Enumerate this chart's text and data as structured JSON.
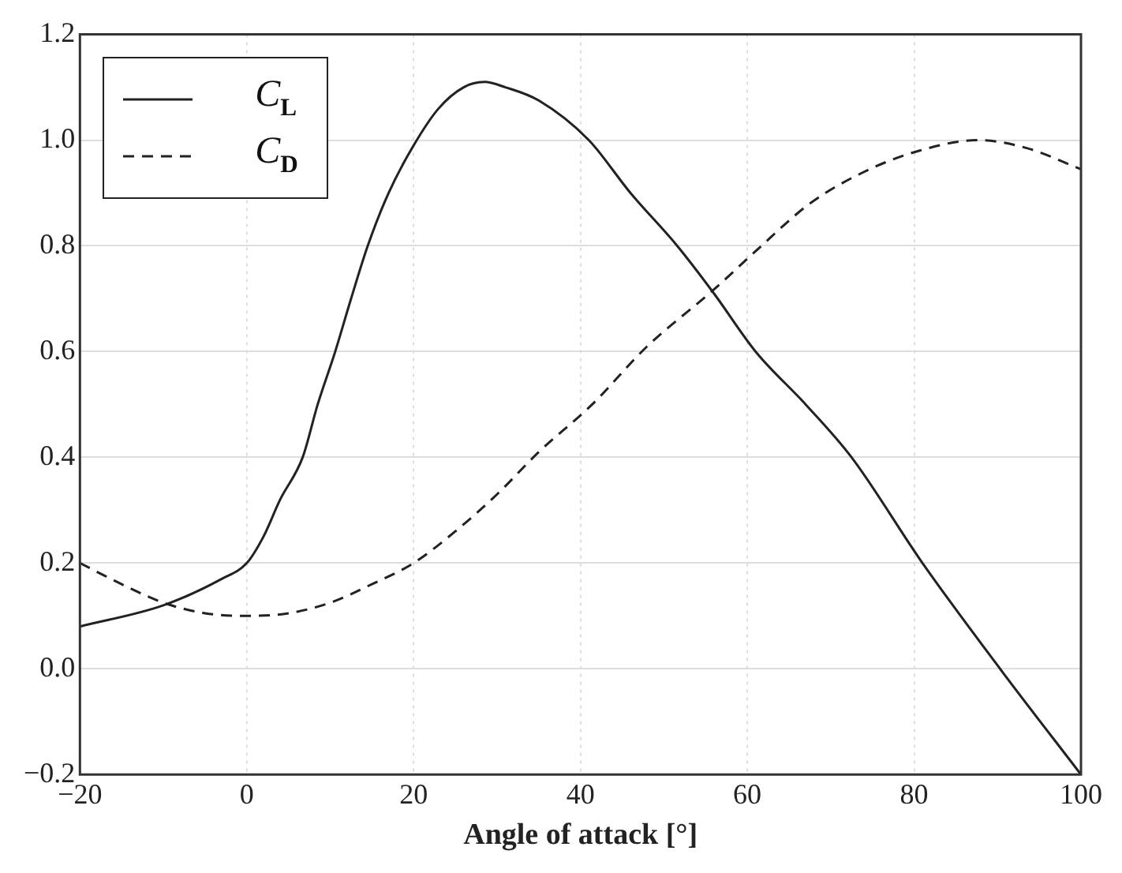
{
  "chart_data": {
    "type": "line",
    "xlabel": "Angle of attack [°]",
    "xlim": [
      -20,
      100
    ],
    "xticks": [
      -20,
      0,
      20,
      40,
      60,
      80,
      100
    ],
    "ylim": [
      -0.2,
      1.2
    ],
    "yticks": [
      {
        "value": -0.2,
        "label": "−0.2"
      },
      {
        "value": 0,
        "label": "0.0"
      },
      {
        "value": 0.2,
        "label": "0.2"
      },
      {
        "value": 0.4,
        "label": "0.4"
      },
      {
        "value": 0.6,
        "label": "0.6"
      },
      {
        "value": 0.8,
        "label": "0.8"
      },
      {
        "value": 1,
        "label": "1.0"
      },
      {
        "value": 1.2,
        "label": "1.2"
      }
    ],
    "grid": true,
    "legend": "top left",
    "marker": "none",
    "series": [
      {
        "name": "C$_{L}$",
        "color": "#222222",
        "line_style": "solid",
        "x": [
          -20,
          -10,
          -3,
          0,
          2,
          4,
          6.7,
          8.5,
          10.6,
          12.5,
          14.5,
          17,
          20,
          23,
          26,
          28.5,
          31,
          35,
          41,
          46,
          51.6,
          56,
          61,
          67,
          72.5,
          81,
          90.3,
          100
        ],
        "values": [
          0.08,
          0.12,
          0.17,
          0.2,
          0.25,
          0.32,
          0.4,
          0.5,
          0.6,
          0.7,
          0.8,
          0.9,
          0.99,
          1.06,
          1.1,
          1.11,
          1.1,
          1.075,
          1.0,
          0.9,
          0.8,
          0.71,
          0.6,
          0.5,
          0.4,
          0.2,
          0.0,
          -0.2
        ]
      },
      {
        "name": "C$_{D}$",
        "color": "#222222",
        "line_style": "dashed",
        "x": [
          -20,
          -15,
          -10,
          -5,
          0,
          5,
          10,
          15,
          20,
          25,
          30,
          35,
          41.4,
          48,
          55.9,
          61,
          67.5,
          74,
          80.6,
          87.7,
          93.5,
          100
        ],
        "values": [
          0.2,
          0.16,
          0.125,
          0.105,
          0.1,
          0.105,
          0.125,
          0.16,
          0.2,
          0.26,
          0.33,
          0.41,
          0.5,
          0.61,
          0.716,
          0.79,
          0.88,
          0.94,
          0.98,
          1.0,
          0.985,
          0.945
        ]
      }
    ]
  }
}
